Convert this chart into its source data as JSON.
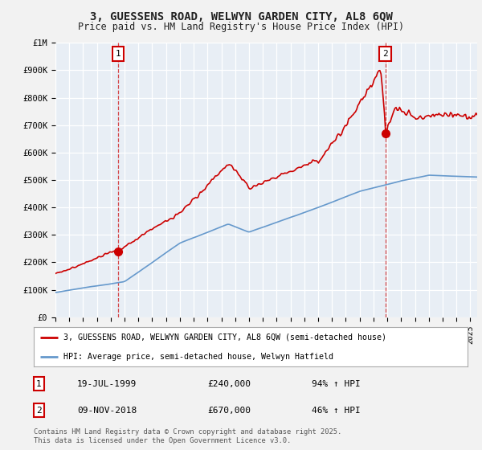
{
  "title": "3, GUESSENS ROAD, WELWYN GARDEN CITY, AL8 6QW",
  "subtitle": "Price paid vs. HM Land Registry's House Price Index (HPI)",
  "ylim": [
    0,
    1000000
  ],
  "xlim_start": 1995.0,
  "xlim_end": 2025.5,
  "bg_color": "#e8eef5",
  "grid_color": "#ffffff",
  "sale1_date": 1999.54,
  "sale1_price": 240000,
  "sale1_label": "19-JUL-1999",
  "sale1_pct": "94% ↑ HPI",
  "sale2_date": 2018.86,
  "sale2_price": 670000,
  "sale2_label": "09-NOV-2018",
  "sale2_pct": "46% ↑ HPI",
  "red_color": "#cc0000",
  "blue_color": "#6699cc",
  "legend1": "3, GUESSENS ROAD, WELWYN GARDEN CITY, AL8 6QW (semi-detached house)",
  "legend2": "HPI: Average price, semi-detached house, Welwyn Hatfield",
  "footnote": "Contains HM Land Registry data © Crown copyright and database right 2025.\nThis data is licensed under the Open Government Licence v3.0."
}
